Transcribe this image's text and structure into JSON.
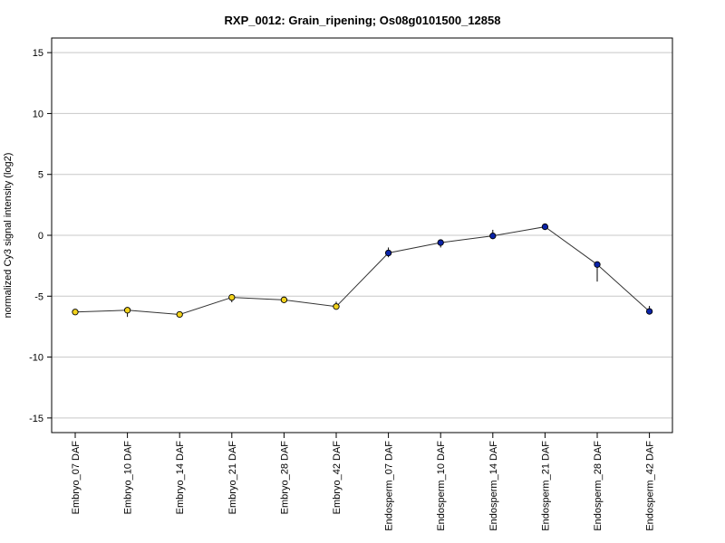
{
  "chart_data": {
    "type": "line",
    "title": "RXP_0012: Grain_ripening; Os08g0101500_12858",
    "xlabel": "",
    "ylabel": "normalized Cy3 signal intensity (log2)",
    "ylim": [
      -16.2,
      16.2
    ],
    "yticks": [
      -15,
      -10,
      -5,
      0,
      5,
      10,
      15
    ],
    "ytick_labels": [
      "-15",
      "-10",
      "-5",
      "0",
      "5",
      "10",
      "15"
    ],
    "grid": "horizontal",
    "categories": [
      "Embryo_07 DAF",
      "Embryo_10 DAF",
      "Embryo_14 DAF",
      "Embryo_21 DAF",
      "Embryo_28 DAF",
      "Embryo_42 DAF",
      "Endosperm_07 DAF",
      "Endosperm_10 DAF",
      "Endosperm_14 DAF",
      "Endosperm_21 DAF",
      "Endosperm_28 DAF",
      "Endosperm_42 DAF"
    ],
    "values": [
      -6.3,
      -6.15,
      -6.5,
      -5.1,
      -5.3,
      -5.85,
      -1.45,
      -0.6,
      -0.05,
      0.7,
      -2.4,
      -6.25
    ],
    "error_low": [
      -6.5,
      -6.7,
      -6.6,
      -5.5,
      -5.45,
      -6.0,
      -1.8,
      -1.0,
      -0.3,
      0.6,
      -3.8,
      -6.4
    ],
    "error_high": [
      -6.1,
      -5.9,
      -6.35,
      -4.9,
      -5.15,
      -5.45,
      -1.0,
      -0.35,
      0.45,
      0.8,
      -2.2,
      -5.8
    ],
    "point_colors": [
      "#f2d21b",
      "#f2d21b",
      "#f2d21b",
      "#f2d21b",
      "#f2d21b",
      "#f2d21b",
      "#0a23a8",
      "#0a23a8",
      "#0a23a8",
      "#0a23a8",
      "#0a23a8",
      "#0a23a8"
    ],
    "line_color": "#333333",
    "grid_color": "#c8c8c8"
  }
}
